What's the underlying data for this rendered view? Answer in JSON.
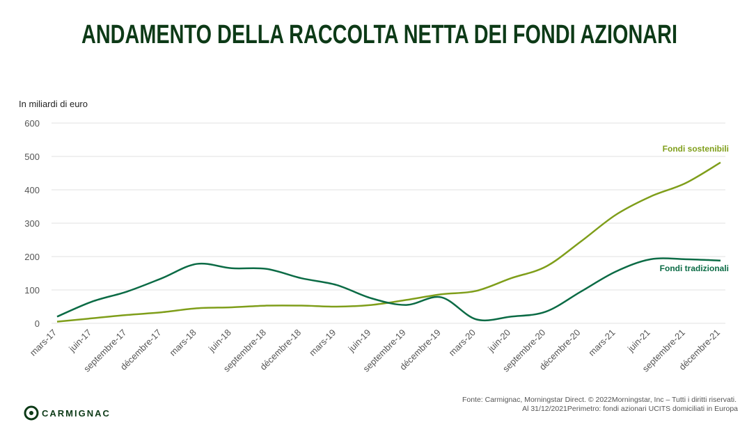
{
  "chart_data": {
    "type": "line",
    "title": "ANDAMENTO DELLA RACCOLTA NETTA DEI FONDI AZIONARI",
    "y_label": "In miliardi di euro",
    "categories": [
      "mars-17",
      "juin-17",
      "septembre-17",
      "décembre-17",
      "mars-18",
      "juin-18",
      "septembre-18",
      "décembre-18",
      "mars-19",
      "juin-19",
      "septembre-19",
      "décembre-19",
      "mars-20",
      "juin-20",
      "septembre-20",
      "décembre-20",
      "mars-21",
      "juin-21",
      "septembre-21",
      "décembre-21"
    ],
    "series": [
      {
        "name": "Fondi sostenibili",
        "color": "#7f9e1a",
        "values": [
          5,
          15,
          25,
          33,
          45,
          48,
          53,
          53,
          50,
          55,
          70,
          87,
          97,
          135,
          170,
          245,
          325,
          380,
          420,
          482
        ]
      },
      {
        "name": "Fondi tradizionali",
        "color": "#0b6b45",
        "values": [
          20,
          65,
          95,
          135,
          178,
          165,
          163,
          135,
          115,
          75,
          55,
          78,
          12,
          20,
          35,
          95,
          155,
          192,
          192,
          188
        ]
      }
    ],
    "ylim": [
      0,
      600
    ],
    "yticks": [
      0,
      100,
      200,
      300,
      400,
      500,
      600
    ],
    "grid": true
  },
  "footer": {
    "lines": [
      "Fonte: Carmignac, Morningstar Direct. © 2022Morningstar, Inc – Tutti i diritti riservati.",
      "Al 31/12/2021Perimetro: fondi azionari UCITS domiciliati in Europa"
    ]
  },
  "logo": "CARMIGNAC"
}
